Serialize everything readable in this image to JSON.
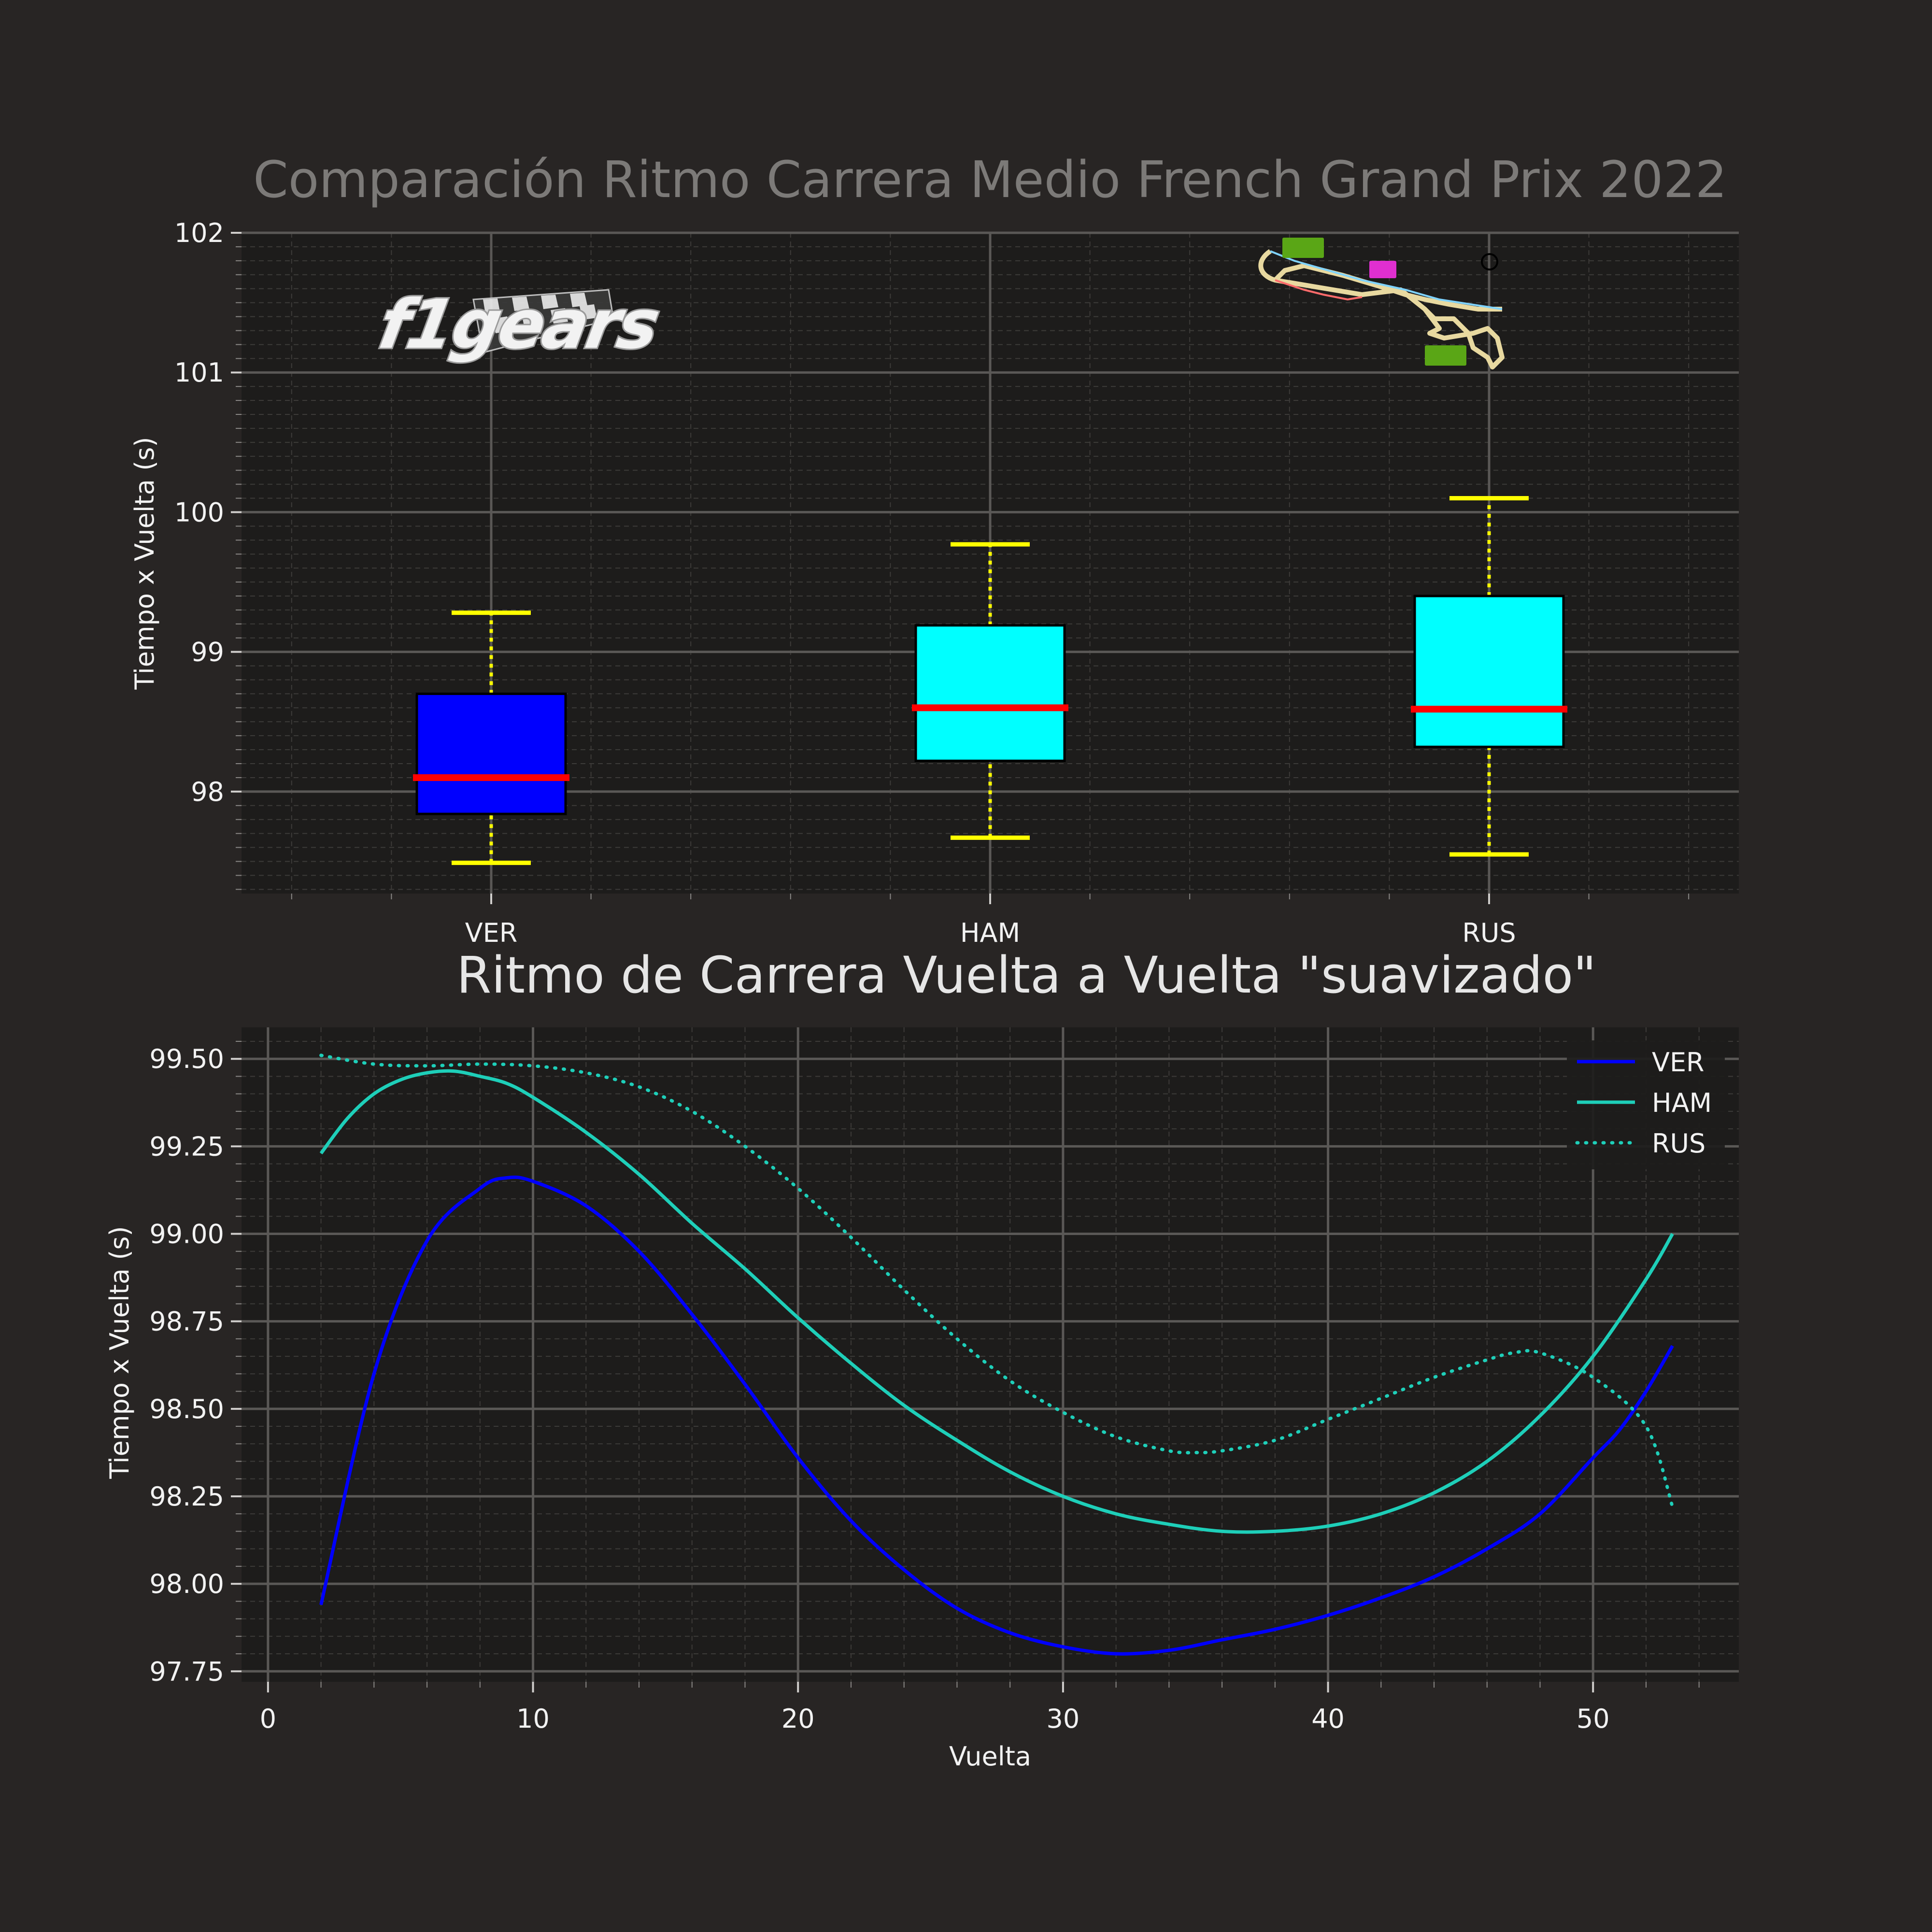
{
  "chart_data": [
    {
      "type": "box",
      "title": "Comparación Ritmo Carrera Medio French Grand Prix 2022",
      "xlabel": "",
      "ylabel": "Tiempo x Vuelta (s)",
      "categories": [
        "VER",
        "HAM",
        "RUS"
      ],
      "ylim": [
        97.27,
        102.0
      ],
      "yticks": [
        98,
        99,
        100,
        101,
        102
      ],
      "ytick_labels": [
        "98",
        "99",
        "100",
        "101",
        "102"
      ],
      "grid": true,
      "boxes": [
        {
          "name": "VER",
          "whisker_low": 97.49,
          "q1": 97.84,
          "median": 98.1,
          "q3": 98.7,
          "whisker_high": 99.28,
          "color": "#0000ff"
        },
        {
          "name": "HAM",
          "whisker_low": 97.67,
          "q1": 98.22,
          "median": 98.6,
          "q3": 99.19,
          "whisker_high": 99.77,
          "color": "#00ffff"
        },
        {
          "name": "RUS",
          "whisker_low": 97.55,
          "q1": 98.32,
          "median": 98.59,
          "q3": 99.4,
          "whisker_high": 100.1,
          "color": "#00ffff"
        }
      ],
      "median_color": "#ff0000",
      "whisker_color": "#ffff00"
    },
    {
      "type": "line",
      "title": "Ritmo de Carrera Vuelta a Vuelta \"suavizado\"",
      "xlabel": "Vuelta",
      "ylabel": "Tiempo x Vuelta (s)",
      "xlim": [
        -1,
        55.5
      ],
      "ylim": [
        97.72,
        99.59
      ],
      "xticks": [
        0,
        10,
        20,
        30,
        40,
        50
      ],
      "xtick_labels": [
        "0",
        "10",
        "20",
        "30",
        "40",
        "50"
      ],
      "yticks": [
        97.75,
        98.0,
        98.25,
        98.5,
        98.75,
        99.0,
        99.25,
        99.5
      ],
      "ytick_labels": [
        "97.75",
        "98.00",
        "98.25",
        "98.50",
        "98.75",
        "99.00",
        "99.25",
        "99.50"
      ],
      "grid": true,
      "legend_position": "top-right",
      "series": [
        {
          "name": "VER",
          "color": "#0000ff",
          "dash": "solid",
          "x": [
            2,
            4,
            6,
            8,
            9,
            10,
            12,
            14,
            16,
            18,
            20,
            22,
            24,
            26,
            28,
            30,
            32,
            34,
            36,
            38,
            40,
            42,
            44,
            46,
            48,
            50,
            51,
            52,
            53
          ],
          "y": [
            97.94,
            98.6,
            98.98,
            99.13,
            99.16,
            99.15,
            99.08,
            98.95,
            98.77,
            98.57,
            98.36,
            98.18,
            98.04,
            97.93,
            97.86,
            97.82,
            97.8,
            97.81,
            97.84,
            97.87,
            97.91,
            97.96,
            98.02,
            98.1,
            98.2,
            98.36,
            98.44,
            98.55,
            98.68
          ]
        },
        {
          "name": "HAM",
          "color": "#1ecfb9",
          "dash": "solid",
          "x": [
            2,
            3,
            4,
            5,
            6,
            7,
            8,
            9,
            10,
            12,
            14,
            16,
            18,
            20,
            22,
            24,
            26,
            28,
            30,
            32,
            34,
            36,
            38,
            40,
            42,
            44,
            46,
            48,
            50,
            52,
            53
          ],
          "y": [
            99.23,
            99.33,
            99.4,
            99.44,
            99.46,
            99.465,
            99.45,
            99.43,
            99.39,
            99.29,
            99.17,
            99.03,
            98.9,
            98.76,
            98.63,
            98.51,
            98.41,
            98.32,
            98.25,
            98.2,
            98.17,
            98.15,
            98.15,
            98.165,
            98.2,
            98.26,
            98.35,
            98.48,
            98.65,
            98.87,
            99.0
          ]
        },
        {
          "name": "RUS",
          "color": "#1ecfb9",
          "dash": "dotted",
          "x": [
            2,
            4,
            6,
            8,
            10,
            12,
            14,
            16,
            18,
            20,
            22,
            24,
            26,
            28,
            30,
            32,
            34,
            35,
            36,
            38,
            40,
            42,
            44,
            46,
            47,
            48,
            50,
            52,
            53
          ],
          "y": [
            99.51,
            99.485,
            99.48,
            99.485,
            99.48,
            99.46,
            99.42,
            99.35,
            99.25,
            99.13,
            98.99,
            98.84,
            98.7,
            98.58,
            98.49,
            98.42,
            98.38,
            98.375,
            98.38,
            98.41,
            98.47,
            98.53,
            98.59,
            98.64,
            98.66,
            98.66,
            98.59,
            98.45,
            98.22
          ]
        }
      ]
    }
  ]
}
